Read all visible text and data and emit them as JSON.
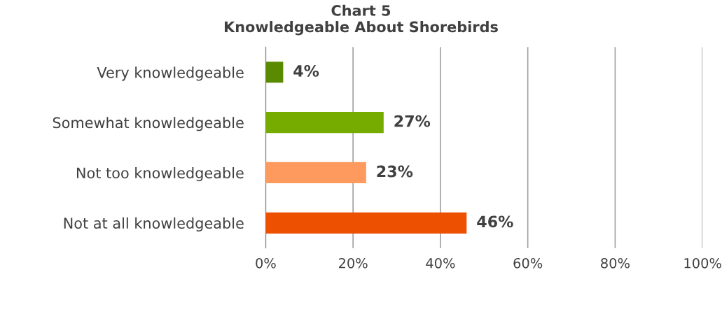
{
  "chart_data": {
    "type": "bar",
    "orientation": "horizontal",
    "title": "Chart 5\nKnowledgeable About Shorebirds",
    "categories": [
      "Very knowledgeable",
      "Somewhat knowledgeable",
      "Not too knowledgeable",
      "Not at all knowledgeable"
    ],
    "values": [
      4,
      27,
      23,
      46
    ],
    "colors": [
      "#5a8a00",
      "#76ab00",
      "#ff9a5e",
      "#ec5000"
    ],
    "value_labels": [
      "4%",
      "27%",
      "23%",
      "46%"
    ],
    "xlim": [
      0,
      100
    ],
    "xticks": [
      {
        "value": 0,
        "label": "0%"
      },
      {
        "value": 20,
        "label": "20%"
      },
      {
        "value": 40,
        "label": "40%"
      },
      {
        "value": 60,
        "label": "60%"
      },
      {
        "value": 80,
        "label": "80%"
      },
      {
        "value": 100,
        "label": "100%"
      }
    ],
    "grid": "x",
    "legend": false
  }
}
